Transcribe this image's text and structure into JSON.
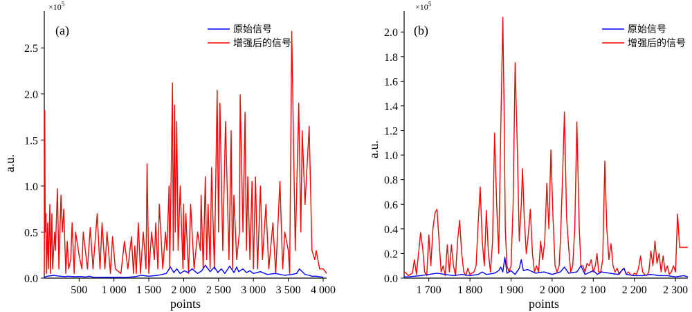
{
  "chart_data": [
    {
      "type": "line",
      "panel_label": "(a)",
      "xlabel": "points",
      "ylabel": "a.u.",
      "y_exponent": "×10",
      "y_exponent_power": "5",
      "xlim": [
        1,
        4050
      ],
      "ylim": [
        0,
        2.9
      ],
      "x_ticks": [
        500,
        1000,
        1500,
        2000,
        2500,
        3000,
        3500,
        4000
      ],
      "x_tick_labels": [
        "500",
        "1 000",
        "1 500",
        "2 000",
        "2 500",
        "3 000",
        "3 500",
        "4 000"
      ],
      "y_ticks": [
        0,
        0.5,
        1.0,
        1.5,
        2.0,
        2.5
      ],
      "y_tick_labels": [
        "0.0",
        "0.5",
        "1.0",
        "1.5",
        "2.0",
        "2.5"
      ],
      "legend_position": "top-right",
      "series": [
        {
          "name": "原始信号",
          "color": "#0000ff",
          "x": [
            1,
            40,
            140,
            180,
            230,
            270,
            300,
            330,
            450,
            520,
            590,
            650,
            700,
            1180,
            1300,
            1390,
            1500,
            1560,
            1630,
            1690,
            1750,
            1810,
            1860,
            1900,
            1950,
            2010,
            2060,
            2120,
            2200,
            2260,
            2310,
            2380,
            2440,
            2490,
            2540,
            2590,
            2660,
            2720,
            2760,
            2790,
            2850,
            2900,
            2950,
            3000,
            3100,
            3200,
            3320,
            3450,
            3550,
            3620,
            3660,
            3740,
            3800,
            3840,
            3900,
            4000
          ],
          "y": [
            0.008,
            0.02,
            0.03,
            0.025,
            0.02,
            0.018,
            0.015,
            0.02,
            0.015,
            0.018,
            0.012,
            0.02,
            0.01,
            0.008,
            0.015,
            0.03,
            0.02,
            0.025,
            0.03,
            0.04,
            0.05,
            0.12,
            0.06,
            0.1,
            0.05,
            0.08,
            0.06,
            0.1,
            0.05,
            0.08,
            0.14,
            0.07,
            0.12,
            0.06,
            0.1,
            0.05,
            0.13,
            0.06,
            0.12,
            0.07,
            0.1,
            0.06,
            0.08,
            0.05,
            0.07,
            0.04,
            0.05,
            0.03,
            0.04,
            0.05,
            0.1,
            0.04,
            0.03,
            0.02,
            0.02,
            0.01
          ]
        },
        {
          "name": "增强后的信号",
          "color": "#ff0000",
          "x": [
            1,
            8,
            15,
            25,
            35,
            50,
            60,
            80,
            90,
            110,
            120,
            150,
            160,
            190,
            210,
            240,
            260,
            280,
            310,
            330,
            350,
            380,
            400,
            430,
            450,
            500,
            540,
            560,
            620,
            660,
            700,
            760,
            800,
            830,
            870,
            900,
            950,
            980,
            1020,
            1100,
            1150,
            1200,
            1250,
            1280,
            1300,
            1320,
            1350,
            1380,
            1420,
            1460,
            1475,
            1500,
            1540,
            1580,
            1600,
            1630,
            1650,
            1700,
            1740,
            1760,
            1790,
            1800,
            1840,
            1850,
            1870,
            1880,
            1900,
            1920,
            1950,
            1990,
            2000,
            2010,
            2030,
            2070,
            2100,
            2150,
            2200,
            2240,
            2250,
            2280,
            2310,
            2330,
            2350,
            2380,
            2400,
            2440,
            2480,
            2500,
            2520,
            2560,
            2600,
            2650,
            2680,
            2700,
            2720,
            2760,
            2800,
            2810,
            2850,
            2880,
            2900,
            2920,
            2950,
            2980,
            3000,
            3030,
            3060,
            3100,
            3130,
            3180,
            3220,
            3280,
            3320,
            3380,
            3420,
            3450,
            3500,
            3520,
            3550,
            3600,
            3650,
            3680,
            3700,
            3740,
            3800,
            3840,
            3880,
            3900,
            3950,
            4000,
            4050
          ],
          "y": [
            0.05,
            1.82,
            0.5,
            0.7,
            0.05,
            0.6,
            0.1,
            0.8,
            0.05,
            0.7,
            0.1,
            0.5,
            0.3,
            0.97,
            0.1,
            0.9,
            0.5,
            0.75,
            0.05,
            0.4,
            0.1,
            0.2,
            0.6,
            0.05,
            0.5,
            0.25,
            0.1,
            0.5,
            0.1,
            0.55,
            0.1,
            0.7,
            0.1,
            0.6,
            0.1,
            0.5,
            0.05,
            0.45,
            0.1,
            0.05,
            0.4,
            0.1,
            0.45,
            0.05,
            0.35,
            0.05,
            0.6,
            0.05,
            0.5,
            0.1,
            1.24,
            0.05,
            0.5,
            0.2,
            0.6,
            0.1,
            0.8,
            0.1,
            0.5,
            0.3,
            1.0,
            0.1,
            2.12,
            0.3,
            1.88,
            0.5,
            1.7,
            0.3,
            1.0,
            0.1,
            0.8,
            0.2,
            0.7,
            0.05,
            0.8,
            0.1,
            0.5,
            0.3,
            0.9,
            0.1,
            1.1,
            0.2,
            0.8,
            0.1,
            1.2,
            0.1,
            2.04,
            0.5,
            1.9,
            0.3,
            1.7,
            0.2,
            1.6,
            0.1,
            0.9,
            0.2,
            0.5,
            1.99,
            0.5,
            1.8,
            0.3,
            1.1,
            0.2,
            1.05,
            0.1,
            1.1,
            0.1,
            1.0,
            0.2,
            0.8,
            0.1,
            0.6,
            0.05,
            1.05,
            0.1,
            0.5,
            0.3,
            0.05,
            2.68,
            0.3,
            1.9,
            0.5,
            1.6,
            0.8,
            1.65,
            0.3,
            0.2,
            0.3,
            0.1,
            0.1,
            0.05
          ]
        }
      ]
    },
    {
      "type": "line",
      "panel_label": "(b)",
      "xlabel": "points",
      "ylabel": "a.u.",
      "y_exponent": "×10",
      "y_exponent_power": "5",
      "xlim": [
        1640,
        2330
      ],
      "ylim": [
        0,
        2.17
      ],
      "x_ticks": [
        1700,
        1800,
        1900,
        2000,
        2100,
        2200,
        2300
      ],
      "x_tick_labels": [
        "1 700",
        "1 800",
        "1 900",
        "2 000",
        "2 100",
        "2 200",
        "2 300"
      ],
      "y_ticks": [
        0,
        0.2,
        0.4,
        0.6,
        0.8,
        1.0,
        1.2,
        1.4,
        1.6,
        1.8,
        2.0
      ],
      "y_tick_labels": [
        "0.0",
        "0.2",
        "0.4",
        "0.6",
        "0.8",
        "1.0",
        "1.2",
        "1.4",
        "1.6",
        "1.8",
        "2.0"
      ],
      "legend_position": "top-right",
      "series": [
        {
          "name": "原始信号",
          "color": "#0000ff",
          "x": [
            1640,
            1650,
            1680,
            1700,
            1720,
            1740,
            1760,
            1780,
            1800,
            1820,
            1830,
            1840,
            1860,
            1870,
            1875,
            1880,
            1885,
            1890,
            1900,
            1910,
            1920,
            1925,
            1930,
            1940,
            1960,
            1980,
            2000,
            2020,
            2030,
            2040,
            2060,
            2070,
            2080,
            2100,
            2110,
            2120,
            2140,
            2160,
            2175,
            2180,
            2200,
            2220,
            2240,
            2260,
            2280,
            2300,
            2320,
            2330
          ],
          "y": [
            0.01,
            0.01,
            0.02,
            0.03,
            0.04,
            0.03,
            0.02,
            0.03,
            0.02,
            0.03,
            0.05,
            0.03,
            0.04,
            0.06,
            0.09,
            0.05,
            0.17,
            0.04,
            0.06,
            0.03,
            0.08,
            0.15,
            0.06,
            0.07,
            0.04,
            0.05,
            0.03,
            0.05,
            0.09,
            0.04,
            0.05,
            0.1,
            0.03,
            0.06,
            0.03,
            0.05,
            0.04,
            0.03,
            0.08,
            0.03,
            0.02,
            0.02,
            0.03,
            0.02,
            0.02,
            0.01,
            0.02,
            0.01
          ]
        },
        {
          "name": "增强后的信号",
          "color": "#ff0000",
          "x": [
            1640,
            1645,
            1650,
            1660,
            1665,
            1670,
            1675,
            1680,
            1685,
            1690,
            1695,
            1700,
            1705,
            1710,
            1715,
            1720,
            1725,
            1730,
            1735,
            1740,
            1745,
            1750,
            1755,
            1760,
            1765,
            1770,
            1775,
            1780,
            1785,
            1790,
            1795,
            1800,
            1810,
            1815,
            1820,
            1825,
            1830,
            1835,
            1840,
            1845,
            1850,
            1855,
            1860,
            1865,
            1870,
            1875,
            1880,
            1883,
            1886,
            1890,
            1895,
            1900,
            1905,
            1910,
            1915,
            1920,
            1925,
            1928,
            1932,
            1937,
            1942,
            1947,
            1952,
            1957,
            1962,
            1967,
            1972,
            1977,
            1982,
            1987,
            1992,
            1997,
            2002,
            2007,
            2012,
            2017,
            2020,
            2025,
            2030,
            2035,
            2040,
            2045,
            2050,
            2055,
            2060,
            2066,
            2070,
            2075,
            2080,
            2085,
            2090,
            2095,
            2100,
            2105,
            2109,
            2113,
            2118,
            2123,
            2128,
            2133,
            2138,
            2143,
            2148,
            2153,
            2158,
            2163,
            2167,
            2171,
            2175,
            2180,
            2185,
            2190,
            2195,
            2200,
            2205,
            2210,
            2215,
            2220,
            2225,
            2230,
            2235,
            2240,
            2245,
            2250,
            2255,
            2260,
            2265,
            2270,
            2275,
            2280,
            2285,
            2290,
            2295,
            2300,
            2305,
            2310,
            2315,
            2320,
            2325,
            2330
          ],
          "y": [
            0.05,
            0.04,
            0.02,
            0.04,
            0.15,
            0.03,
            0.2,
            0.37,
            0.25,
            0.05,
            0.02,
            0.35,
            0.1,
            0.4,
            0.53,
            0.56,
            0.3,
            0.05,
            0.1,
            0.02,
            0.27,
            0.05,
            0.27,
            0.1,
            0.02,
            0.3,
            0.47,
            0.2,
            0.05,
            0.02,
            0.08,
            0.03,
            0.05,
            0.1,
            0.45,
            0.74,
            0.3,
            0.1,
            0.55,
            0.2,
            0.05,
            0.3,
            1.18,
            0.6,
            0.2,
            1.2,
            2.12,
            1.4,
            0.4,
            0.1,
            0.05,
            0.1,
            0.6,
            1.75,
            1.1,
            0.3,
            0.6,
            0.89,
            0.5,
            0.2,
            0.35,
            0.56,
            0.2,
            0.05,
            0.1,
            0.05,
            0.3,
            0.15,
            0.3,
            0.77,
            0.4,
            1.04,
            0.5,
            0.1,
            0.05,
            0.1,
            0.3,
            0.8,
            1.35,
            0.5,
            0.25,
            0.05,
            0.1,
            0.4,
            1.27,
            0.4,
            0.1,
            0.1,
            0.05,
            0.12,
            0.1,
            0.15,
            0.05,
            0.1,
            0.2,
            0.05,
            0.05,
            0.15,
            0.95,
            0.4,
            0.15,
            0.28,
            0.1,
            0.05,
            0.08,
            0.03,
            0.05,
            0.07,
            0.08,
            0.03,
            0.05,
            0.03,
            0.02,
            0.04,
            0.03,
            0.08,
            0.18,
            0.05,
            0.03,
            0.02,
            0.05,
            0.22,
            0.1,
            0.3,
            0.12,
            0.2,
            0.05,
            0.18,
            0.05,
            0.1,
            0.03,
            0.05,
            0.1,
            0.05,
            0.52,
            0.25,
            0.25,
            0.25,
            0.25,
            0.25
          ]
        }
      ]
    }
  ]
}
